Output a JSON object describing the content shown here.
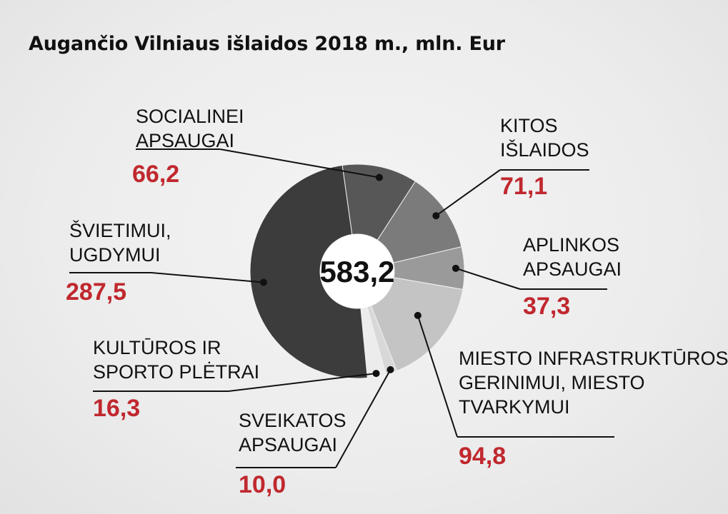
{
  "chart_data": {
    "type": "pie",
    "title": "Augančio Vilniaus išlaidos 2018 m., mln. Eur",
    "total": "583,2",
    "slices": [
      {
        "label_lines": [
          "SOCIALINEI",
          "APSAUGAI"
        ],
        "value": 66.2,
        "value_text": "66,2",
        "color": "#575757"
      },
      {
        "label_lines": [
          "KITOS",
          "IŠLAIDOS"
        ],
        "value": 71.1,
        "value_text": "71,1",
        "color": "#7b7b7b"
      },
      {
        "label_lines": [
          "APLINKOS",
          "APSAUGAI"
        ],
        "value": 37.3,
        "value_text": "37,3",
        "color": "#9a9a9a"
      },
      {
        "label_lines": [
          "MIESTO INFRASTRUKTŪROS",
          "GERINIMUI, MIESTO",
          "TVARKYMUI"
        ],
        "value": 94.8,
        "value_text": "94,8",
        "color": "#c4c4c4"
      },
      {
        "label_lines": [
          "SVEIKATOS",
          "APSAUGAI"
        ],
        "value": 10.0,
        "value_text": "10,0",
        "color": "#d8d8d8"
      },
      {
        "label_lines": [
          "KULTŪROS IR",
          "SPORTO PLĖTRAI"
        ],
        "value": 16.3,
        "value_text": "16,3",
        "color": "#ececec"
      },
      {
        "label_lines": [
          "ŠVIETIMUI,",
          "UGDYMUI"
        ],
        "value": 287.5,
        "value_text": "287,5",
        "color": "#3c3c3c"
      }
    ],
    "value_color": "#c0282e"
  }
}
